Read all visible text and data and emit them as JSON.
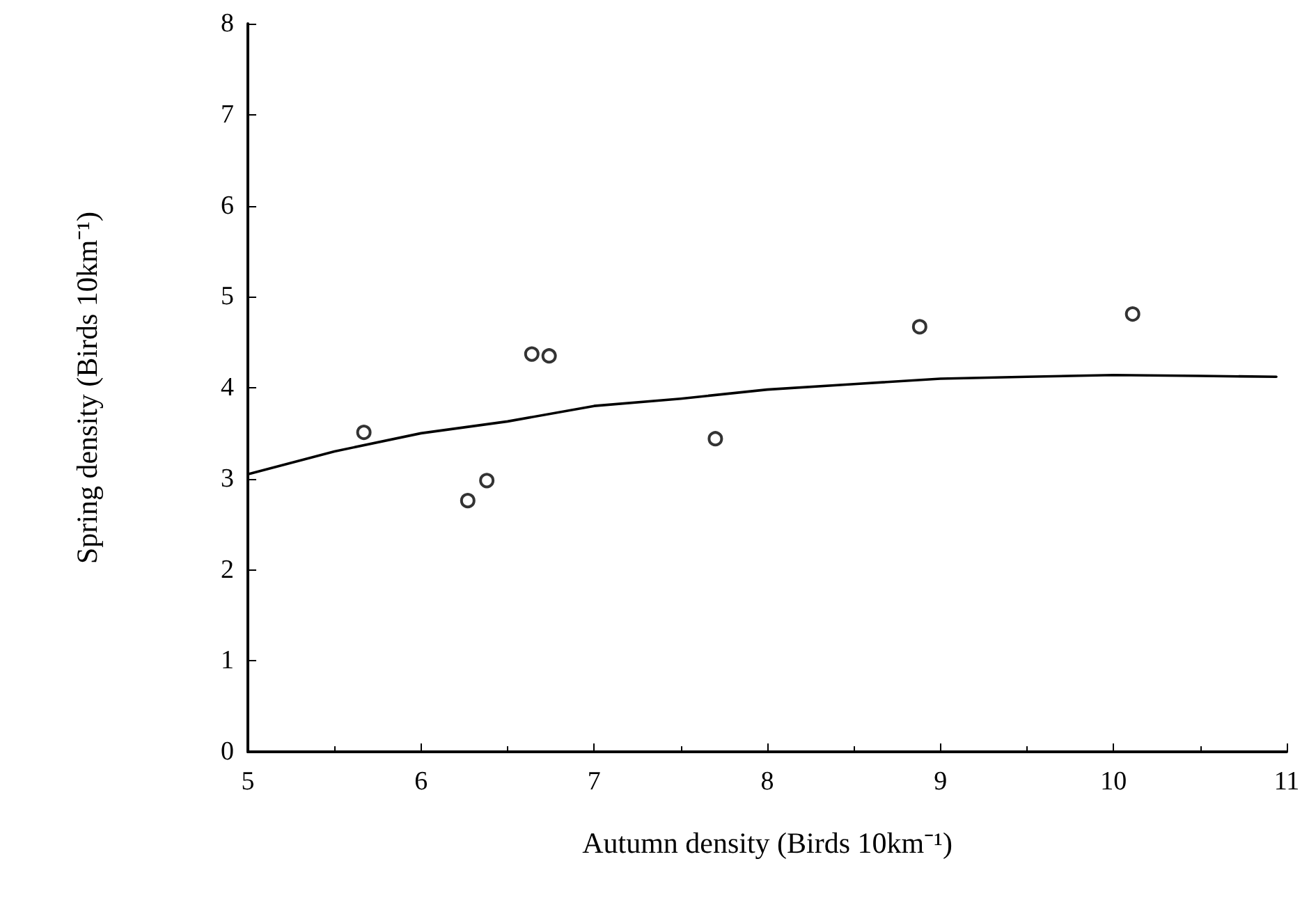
{
  "chart_data": {
    "type": "scatter",
    "xlabel": "Autumn density (Birds 10km⁻¹)",
    "ylabel": "Spring density (Birds 10km⁻¹)",
    "xlim": [
      5,
      11
    ],
    "xticks": [
      5,
      6,
      7,
      8,
      9,
      10,
      11
    ],
    "ylim": [
      0,
      8
    ],
    "yticks": [
      0,
      1,
      2,
      3,
      4,
      5,
      6,
      7,
      8
    ],
    "grid": false,
    "series": [
      {
        "type": "scatter",
        "marker": "circle",
        "color": "#000000",
        "x": [
          5.67,
          6.27,
          6.38,
          6.64,
          6.74,
          7.7,
          8.88,
          10.11
        ],
        "values": [
          3.51,
          2.76,
          2.98,
          4.37,
          4.35,
          3.44,
          4.67,
          4.81
        ]
      },
      {
        "type": "line",
        "marker": "none",
        "line_style": "solid",
        "color": "#000000",
        "x": [
          5,
          5.5,
          6,
          6.5,
          7,
          7.5,
          8,
          8.5,
          9,
          9.5,
          10,
          10.5,
          10.94
        ],
        "values": [
          3.05,
          3.3,
          3.5,
          3.63,
          3.8,
          3.88,
          3.98,
          4.04,
          4.1,
          4.12,
          4.14,
          4.13,
          4.12
        ]
      }
    ]
  }
}
